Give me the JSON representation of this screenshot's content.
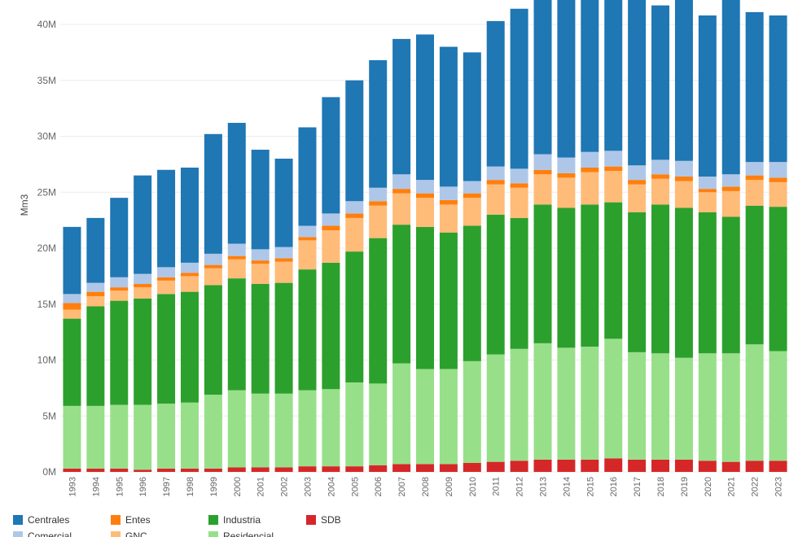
{
  "chart_data": {
    "type": "bar",
    "stacked": true,
    "title": "",
    "xlabel": "",
    "ylabel": "Mm3",
    "ylim": [
      0,
      42000000
    ],
    "yticks": [
      0,
      5000000,
      10000000,
      15000000,
      20000000,
      25000000,
      30000000,
      35000000,
      40000000
    ],
    "ytick_labels": [
      "0M",
      "5M",
      "10M",
      "15M",
      "20M",
      "25M",
      "30M",
      "35M",
      "40M"
    ],
    "grid": true,
    "legend_position": "bottom-left",
    "categories": [
      "1993",
      "1994",
      "1995",
      "1996",
      "1997",
      "1998",
      "1999",
      "2000",
      "2001",
      "2002",
      "2003",
      "2004",
      "2005",
      "2006",
      "2007",
      "2008",
      "2009",
      "2010",
      "2011",
      "2012",
      "2013",
      "2014",
      "2015",
      "2016",
      "2017",
      "2018",
      "2019",
      "2020",
      "2021",
      "2022",
      "2023"
    ],
    "series": [
      {
        "name": "SDB",
        "color": "#d62728",
        "values": [
          300000,
          300000,
          300000,
          200000,
          300000,
          300000,
          300000,
          400000,
          400000,
          400000,
          500000,
          500000,
          500000,
          600000,
          700000,
          700000,
          700000,
          800000,
          900000,
          1000000,
          1100000,
          1100000,
          1100000,
          1200000,
          1100000,
          1100000,
          1100000,
          1000000,
          900000,
          1000000,
          1000000
        ]
      },
      {
        "name": "Residencial",
        "color": "#98df8a",
        "values": [
          5600000,
          5600000,
          5700000,
          5800000,
          5800000,
          5900000,
          6600000,
          6900000,
          6600000,
          6600000,
          6800000,
          6900000,
          7500000,
          7300000,
          9000000,
          8500000,
          8500000,
          9100000,
          9600000,
          10000000,
          10400000,
          10000000,
          10100000,
          10700000,
          9600000,
          9500000,
          9100000,
          9600000,
          9700000,
          10400000,
          9800000
        ]
      },
      {
        "name": "Industria",
        "color": "#2ca02c",
        "values": [
          7800000,
          8900000,
          9300000,
          9500000,
          9800000,
          9900000,
          9800000,
          10000000,
          9800000,
          9900000,
          10800000,
          11300000,
          11700000,
          13000000,
          12400000,
          12700000,
          12200000,
          12100000,
          12500000,
          11700000,
          12400000,
          12500000,
          12700000,
          12200000,
          12500000,
          13300000,
          13400000,
          12600000,
          12200000,
          12400000,
          12900000
        ]
      },
      {
        "name": "GNC",
        "color": "#ffbb78",
        "values": [
          800000,
          900000,
          900000,
          1000000,
          1200000,
          1400000,
          1500000,
          1700000,
          1800000,
          1900000,
          2600000,
          2900000,
          3000000,
          2900000,
          2800000,
          2600000,
          2500000,
          2500000,
          2700000,
          2700000,
          2700000,
          2700000,
          2900000,
          2800000,
          2500000,
          2300000,
          2400000,
          1800000,
          2300000,
          2300000,
          2200000
        ]
      },
      {
        "name": "Entes",
        "color": "#ff7f0e",
        "values": [
          600000,
          400000,
          300000,
          300000,
          300000,
          300000,
          300000,
          300000,
          300000,
          300000,
          300000,
          400000,
          400000,
          400000,
          400000,
          400000,
          400000,
          400000,
          400000,
          400000,
          400000,
          400000,
          400000,
          400000,
          400000,
          400000,
          400000,
          300000,
          400000,
          400000,
          400000
        ]
      },
      {
        "name": "Comercial",
        "color": "#aec7e8",
        "values": [
          800000,
          800000,
          900000,
          900000,
          900000,
          900000,
          1000000,
          1100000,
          1000000,
          1000000,
          1000000,
          1100000,
          1100000,
          1200000,
          1300000,
          1200000,
          1200000,
          1100000,
          1200000,
          1300000,
          1400000,
          1400000,
          1400000,
          1400000,
          1300000,
          1300000,
          1400000,
          1100000,
          1100000,
          1200000,
          1400000
        ]
      },
      {
        "name": "Centrales",
        "color": "#1f77b4",
        "values": [
          6000000,
          5800000,
          7100000,
          8800000,
          8700000,
          8500000,
          10700000,
          10800000,
          8900000,
          7900000,
          8800000,
          10400000,
          10800000,
          11400000,
          12100000,
          13000000,
          12500000,
          11500000,
          13000000,
          14300000,
          14300000,
          14200000,
          14000000,
          14200000,
          14900000,
          13800000,
          14400000,
          14400000,
          15800000,
          13400000,
          13100000
        ]
      }
    ]
  },
  "legend": {
    "items": [
      {
        "label": "Centrales",
        "color": "#1f77b4"
      },
      {
        "label": "Comercial",
        "color": "#aec7e8"
      },
      {
        "label": "Entes",
        "color": "#ff7f0e"
      },
      {
        "label": "GNC",
        "color": "#ffbb78"
      },
      {
        "label": "Industria",
        "color": "#2ca02c"
      },
      {
        "label": "Residencial",
        "color": "#98df8a"
      },
      {
        "label": "SDB",
        "color": "#d62728"
      }
    ]
  }
}
